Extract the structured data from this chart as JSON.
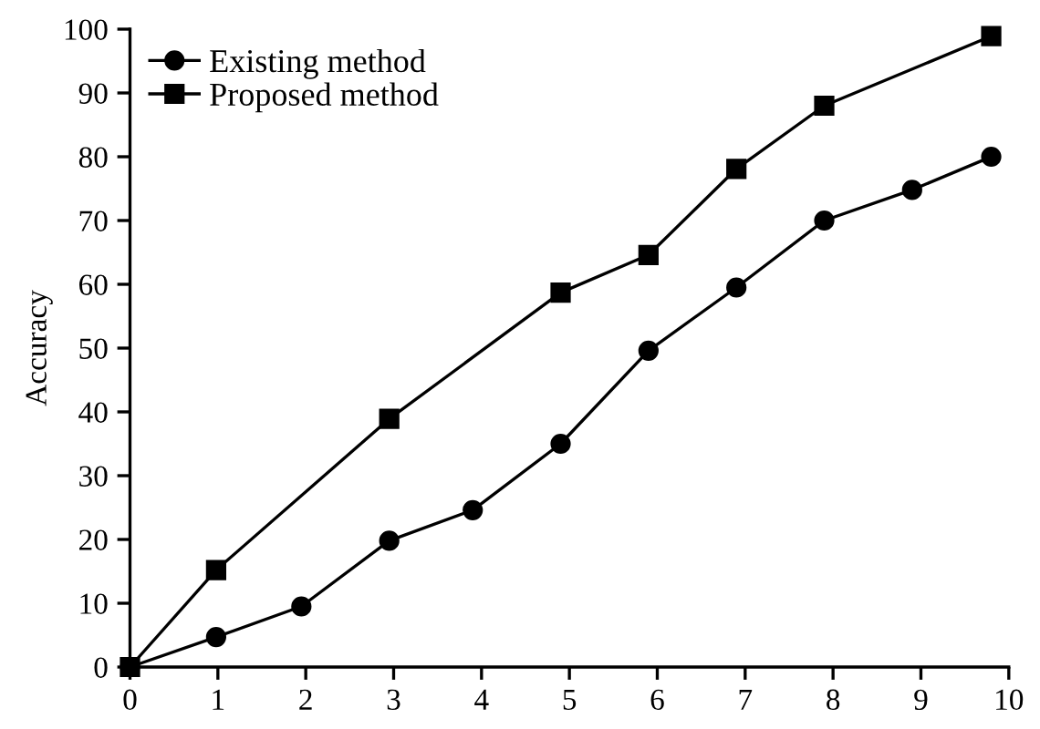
{
  "chart_data": {
    "type": "line",
    "ylabel": "Accuracy",
    "series": [
      {
        "name": "Existing method",
        "color": "#000000",
        "marker": "circle",
        "x": [
          0,
          0.98,
          1.95,
          2.95,
          3.9,
          4.9,
          5.9,
          6.9,
          7.9,
          8.9,
          9.8
        ],
        "values": [
          0,
          4.7,
          9.5,
          19.8,
          24.6,
          35,
          49.6,
          59.5,
          70,
          74.8,
          80
        ]
      },
      {
        "name": "Proposed method",
        "color": "#000000",
        "marker": "square",
        "x": [
          0,
          0.98,
          2.95,
          4.9,
          5.9,
          6.9,
          7.9,
          9.8
        ],
        "values": [
          0,
          15.2,
          38.9,
          58.7,
          64.6,
          78.1,
          88,
          98.9
        ]
      }
    ],
    "xlim": [
      0,
      10
    ],
    "ylim": [
      0,
      100
    ],
    "xticks": [
      0,
      1,
      2,
      3,
      4,
      5,
      6,
      7,
      8,
      9,
      10
    ],
    "yticks": [
      0,
      10,
      20,
      30,
      40,
      50,
      60,
      70,
      80,
      90,
      100
    ],
    "grid": false,
    "legend": "top left",
    "line_style": "solid"
  }
}
